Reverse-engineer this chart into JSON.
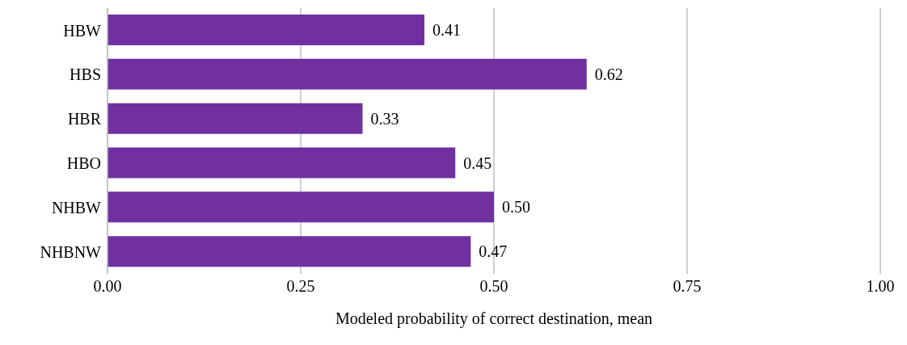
{
  "chart_data": {
    "type": "bar",
    "orientation": "horizontal",
    "xlabel": "Modeled probability of correct destination, mean",
    "categories": [
      "HBW",
      "HBS",
      "HBR",
      "HBO",
      "NHBW",
      "NHBNW"
    ],
    "values": [
      0.41,
      0.62,
      0.33,
      0.45,
      0.5,
      0.47
    ],
    "value_labels": [
      "0.41",
      "0.62",
      "0.33",
      "0.45",
      "0.50",
      "0.47"
    ],
    "color": "#7030a0",
    "xlim": [
      0,
      1
    ],
    "xticks": [
      {
        "value": 0,
        "label": "0.00"
      },
      {
        "value": 0.25,
        "label": "0.25"
      },
      {
        "value": 0.5,
        "label": "0.50"
      },
      {
        "value": 0.75,
        "label": "0.75"
      },
      {
        "value": 1,
        "label": "1.00"
      }
    ],
    "grid": "x",
    "legend": false
  }
}
